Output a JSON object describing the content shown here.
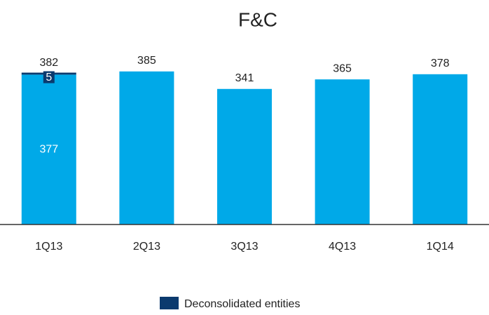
{
  "chart_data": {
    "type": "stacked_bar",
    "title": "F&C",
    "categories": [
      "1Q13",
      "2Q13",
      "3Q13",
      "4Q13",
      "1Q14"
    ],
    "series": [
      {
        "color": "#00a9e8",
        "values": [
          377,
          385,
          341,
          365,
          378
        ]
      },
      {
        "name": "Deconsolidated entities",
        "color": "#0b3a6e",
        "values": [
          5,
          null,
          null,
          null,
          null
        ]
      }
    ],
    "totals": [
      382,
      null,
      null,
      null,
      null
    ],
    "ylim": [
      0,
      450
    ]
  }
}
